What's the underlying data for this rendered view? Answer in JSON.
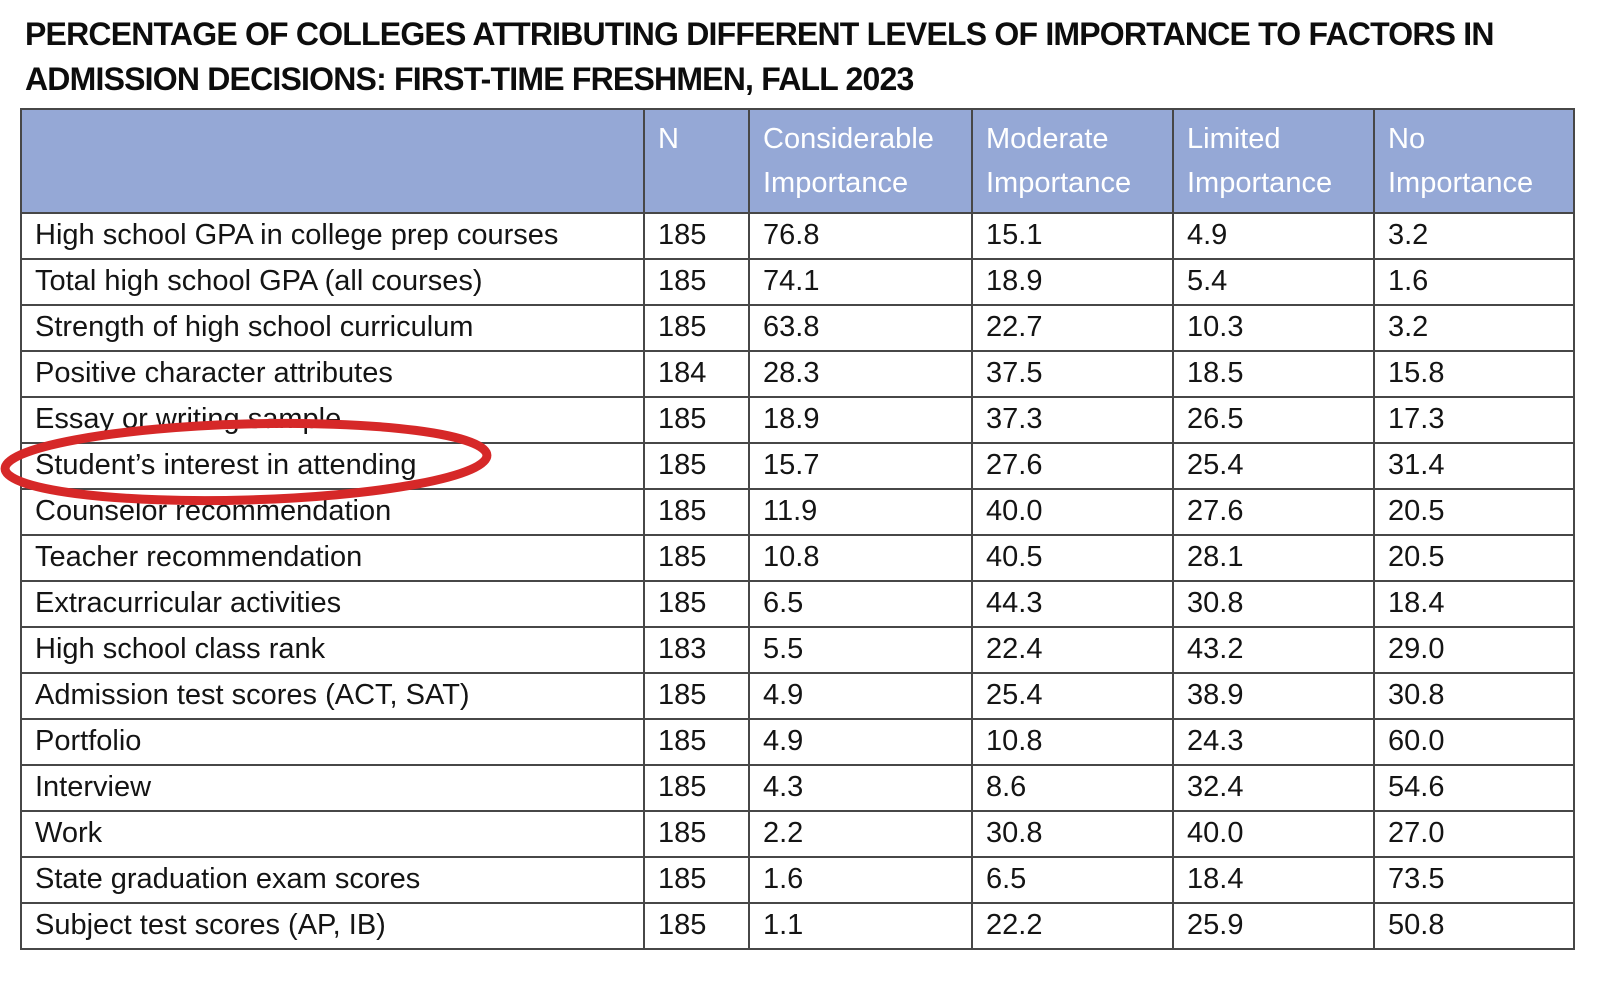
{
  "title": {
    "line1": "PERCENTAGE OF COLLEGES ATTRIBUTING DIFFERENT LEVELS OF IMPORTANCE TO FACTORS IN",
    "line2": "ADMISSION DECISIONS: FIRST-TIME FRESHMEN, FALL 2023"
  },
  "table": {
    "columns": [
      "",
      "N",
      "Considerable\nImportance",
      "Moderate\nImportance",
      "Limited\nImportance",
      "No\nImportance"
    ],
    "rows": [
      [
        "High school GPA in college prep courses",
        "185",
        "76.8",
        "15.1",
        "4.9",
        "3.2"
      ],
      [
        "Total high school GPA (all courses)",
        "185",
        "74.1",
        "18.9",
        "5.4",
        "1.6"
      ],
      [
        "Strength of high school curriculum",
        "185",
        "63.8",
        "22.7",
        "10.3",
        "3.2"
      ],
      [
        "Positive character attributes",
        "184",
        "28.3",
        "37.5",
        "18.5",
        "15.8"
      ],
      [
        "Essay or writing sample",
        "185",
        "18.9",
        "37.3",
        "26.5",
        "17.3"
      ],
      [
        "Student’s interest in attending",
        "185",
        "15.7",
        "27.6",
        "25.4",
        "31.4"
      ],
      [
        "Counselor recommendation",
        "185",
        "11.9",
        "40.0",
        "27.6",
        "20.5"
      ],
      [
        "Teacher recommendation",
        "185",
        "10.8",
        "40.5",
        "28.1",
        "20.5"
      ],
      [
        "Extracurricular activities",
        "185",
        "6.5",
        "44.3",
        "30.8",
        "18.4"
      ],
      [
        "High school class rank",
        "183",
        "5.5",
        "22.4",
        "43.2",
        "29.0"
      ],
      [
        "Admission test scores (ACT, SAT)",
        "185",
        "4.9",
        "25.4",
        "38.9",
        "30.8"
      ],
      [
        "Portfolio",
        "185",
        "4.9",
        "10.8",
        "24.3",
        "60.0"
      ],
      [
        "Interview",
        "185",
        "4.3",
        "8.6",
        "32.4",
        "54.6"
      ],
      [
        "Work",
        "185",
        "2.2",
        "30.8",
        "40.0",
        "27.0"
      ],
      [
        "State graduation exam scores",
        "185",
        "1.6",
        "6.5",
        "18.4",
        "73.5"
      ],
      [
        "Subject test scores (AP, IB)",
        "185",
        "1.1",
        "22.2",
        "25.9",
        "50.8"
      ]
    ]
  },
  "annotation": {
    "shape": "ellipse",
    "color": "#d62828",
    "highlighted_text": "Student’s interest in attending"
  },
  "colors": {
    "header_bg": "#95a8d6",
    "header_text": "#ffffff",
    "border": "#474747",
    "body_text": "#141414",
    "highlight": "#d62828"
  }
}
